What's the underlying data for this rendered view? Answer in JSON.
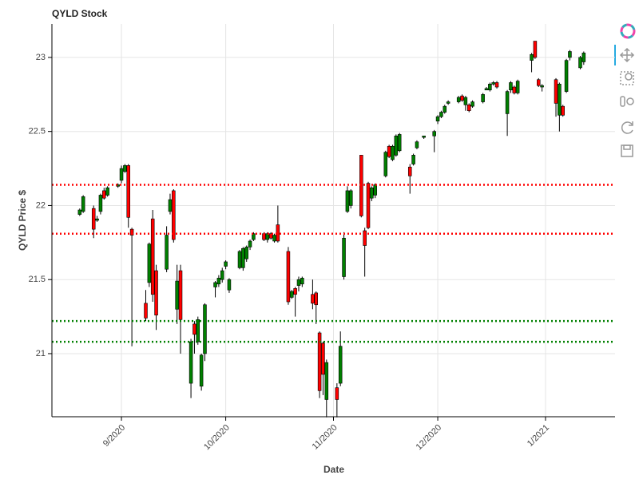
{
  "chart_data": {
    "type": "candlestick",
    "title": "QYLD Stock",
    "x_label": "Date",
    "y_label": "QYLD Price $",
    "xlim": [
      "2020-08-12",
      "2021-01-21"
    ],
    "ylim": [
      20.574,
      23.226
    ],
    "xticks": [
      {
        "value": "2020-09-01",
        "label": "9/2020"
      },
      {
        "value": "2020-10-01",
        "label": "10/2020"
      },
      {
        "value": "2020-11-01",
        "label": "11/2020"
      },
      {
        "value": "2020-12-01",
        "label": "12/2020"
      },
      {
        "value": "2021-01-01",
        "label": "1/2021"
      }
    ],
    "yticks": [
      21,
      21.5,
      22,
      22.5,
      23
    ],
    "grid": true,
    "up_color": "#008000",
    "down_color": "#ff0000",
    "hlines": [
      {
        "value": 22.14,
        "color": "#ff0000"
      },
      {
        "value": 21.81,
        "color": "#ff0000"
      },
      {
        "value": 21.22,
        "color": "#008000"
      },
      {
        "value": 21.08,
        "color": "#008000"
      }
    ],
    "x": [
      "2020-08-20",
      "2020-08-21",
      "2020-08-24",
      "2020-08-25",
      "2020-08-26",
      "2020-08-27",
      "2020-08-28",
      "2020-08-31",
      "2020-09-01",
      "2020-09-02",
      "2020-09-03",
      "2020-09-04",
      "2020-09-08",
      "2020-09-09",
      "2020-09-10",
      "2020-09-11",
      "2020-09-14",
      "2020-09-15",
      "2020-09-16",
      "2020-09-17",
      "2020-09-18",
      "2020-09-21",
      "2020-09-22",
      "2020-09-23",
      "2020-09-24",
      "2020-09-25",
      "2020-09-28",
      "2020-09-29",
      "2020-09-30",
      "2020-10-01",
      "2020-10-02",
      "2020-10-05",
      "2020-10-06",
      "2020-10-07",
      "2020-10-08",
      "2020-10-09",
      "2020-10-12",
      "2020-10-13",
      "2020-10-14",
      "2020-10-15",
      "2020-10-16",
      "2020-10-19",
      "2020-10-20",
      "2020-10-21",
      "2020-10-22",
      "2020-10-23",
      "2020-10-26",
      "2020-10-27",
      "2020-10-28",
      "2020-10-29",
      "2020-10-30",
      "2020-11-02",
      "2020-11-03",
      "2020-11-04",
      "2020-11-05",
      "2020-11-06",
      "2020-11-09",
      "2020-11-10",
      "2020-11-11",
      "2020-11-12",
      "2020-11-13",
      "2020-11-16",
      "2020-11-17",
      "2020-11-18",
      "2020-11-19",
      "2020-11-20",
      "2020-11-23",
      "2020-11-24",
      "2020-11-25",
      "2020-11-27",
      "2020-11-30",
      "2020-12-01",
      "2020-12-02",
      "2020-12-03",
      "2020-12-04",
      "2020-12-07",
      "2020-12-08",
      "2020-12-09",
      "2020-12-10",
      "2020-12-11",
      "2020-12-14",
      "2020-12-15",
      "2020-12-16",
      "2020-12-17",
      "2020-12-18",
      "2020-12-21",
      "2020-12-22",
      "2020-12-23",
      "2020-12-24",
      "2020-12-28",
      "2020-12-29",
      "2020-12-30",
      "2020-12-31",
      "2021-01-04",
      "2021-01-05",
      "2021-01-06",
      "2021-01-07",
      "2021-01-08",
      "2021-01-11",
      "2021-01-12"
    ],
    "open": [
      21.94,
      21.96,
      21.98,
      21.9,
      21.96,
      22.1,
      22.07,
      22.13,
      22.17,
      22.23,
      22.27,
      21.84,
      21.34,
      21.48,
      21.91,
      21.56,
      21.57,
      21.96,
      22.1,
      21.3,
      21.56,
      20.8,
      21.2,
      21.08,
      20.78,
      21.0,
      21.45,
      21.47,
      21.5,
      21.59,
      21.43,
      21.58,
      21.58,
      21.64,
      21.72,
      21.77,
      21.81,
      21.77,
      21.81,
      21.76,
      21.87,
      21.69,
      21.38,
      21.44,
      21.46,
      21.47,
      21.4,
      21.41,
      21.14,
      21.07,
      20.69,
      20.77,
      20.8,
      21.52,
      21.96,
      22.0,
      22.34,
      21.83,
      22.15,
      22.05,
      22.07,
      22.2,
      22.4,
      22.31,
      22.34,
      22.37,
      22.26,
      22.28,
      22.39,
      22.46,
      22.47,
      22.57,
      22.6,
      22.63,
      22.69,
      22.7,
      22.74,
      22.68,
      22.68,
      22.67,
      22.7,
      22.78,
      22.78,
      22.82,
      22.83,
      22.62,
      22.78,
      22.8,
      22.76,
      22.98,
      23.11,
      22.85,
      22.8,
      22.85,
      22.61,
      22.67,
      22.77,
      23.0,
      22.93,
      22.97
    ],
    "high": [
      21.98,
      22.07,
      22.0,
      21.93,
      22.08,
      22.12,
      22.13,
      22.15,
      22.27,
      22.28,
      22.28,
      21.85,
      21.43,
      21.75,
      21.97,
      21.6,
      21.86,
      22.08,
      22.11,
      21.6,
      21.6,
      21.1,
      21.22,
      21.25,
      21.0,
      21.34,
      21.49,
      21.53,
      21.58,
      21.63,
      21.51,
      21.7,
      21.72,
      21.73,
      21.77,
      21.82,
      21.82,
      21.82,
      21.82,
      21.81,
      22.0,
      21.72,
      21.43,
      21.45,
      21.52,
      21.52,
      21.5,
      21.42,
      21.15,
      21.08,
      20.96,
      20.8,
      21.15,
      21.82,
      22.13,
      22.11,
      22.34,
      21.85,
      22.16,
      22.13,
      22.15,
      22.37,
      22.41,
      22.41,
      22.48,
      22.49,
      22.28,
      22.35,
      22.44,
      22.47,
      22.51,
      22.61,
      22.64,
      22.68,
      22.71,
      22.74,
      22.75,
      22.74,
      22.69,
      22.71,
      22.76,
      22.8,
      22.83,
      22.84,
      22.84,
      22.78,
      22.84,
      22.81,
      22.85,
      23.03,
      23.11,
      22.86,
      22.82,
      22.86,
      22.83,
      22.68,
      22.99,
      23.05,
      23.01,
      23.04
    ],
    "low": [
      21.93,
      21.95,
      21.78,
      21.89,
      21.94,
      22.04,
      22.06,
      22.12,
      22.15,
      22.22,
      21.85,
      21.05,
      21.22,
      21.45,
      21.35,
      21.16,
      21.55,
      21.94,
      21.75,
      21.2,
      21.0,
      20.7,
      21.0,
      21.06,
      20.75,
      20.95,
      21.38,
      21.45,
      21.48,
      21.57,
      21.41,
      21.57,
      21.56,
      21.62,
      21.7,
      21.76,
      21.76,
      21.75,
      21.77,
      21.75,
      21.75,
      21.33,
      21.37,
      21.25,
      21.42,
      21.45,
      21.3,
      21.2,
      20.7,
      20.72,
      20.57,
      20.57,
      20.78,
      21.5,
      21.95,
      21.98,
      21.92,
      21.52,
      21.84,
      22.03,
      22.05,
      22.19,
      22.32,
      22.3,
      22.33,
      22.36,
      22.08,
      22.27,
      22.38,
      22.45,
      22.36,
      22.55,
      22.59,
      22.62,
      22.68,
      22.69,
      22.7,
      22.64,
      22.63,
      22.66,
      22.69,
      22.78,
      22.77,
      22.81,
      22.79,
      22.47,
      22.76,
      22.75,
      22.75,
      22.9,
      22.99,
      22.8,
      22.77,
      22.6,
      22.5,
      22.6,
      22.76,
      22.98,
      22.92,
      22.95
    ],
    "close": [
      21.97,
      22.06,
      21.84,
      21.91,
      22.07,
      22.05,
      22.12,
      22.14,
      22.25,
      22.27,
      21.92,
      21.8,
      21.24,
      21.74,
      21.4,
      21.26,
      21.8,
      22.04,
      21.77,
      21.49,
      21.23,
      21.08,
      21.13,
      21.23,
      20.99,
      21.33,
      21.48,
      21.51,
      21.56,
      21.62,
      21.5,
      21.69,
      21.71,
      21.72,
      21.76,
      21.81,
      21.77,
      21.81,
      21.78,
      21.8,
      21.76,
      21.35,
      21.42,
      21.4,
      21.5,
      21.51,
      21.34,
      21.33,
      20.75,
      20.86,
      20.94,
      20.69,
      21.05,
      21.78,
      22.1,
      22.1,
      21.93,
      21.73,
      21.85,
      22.12,
      22.14,
      22.36,
      22.33,
      22.4,
      22.47,
      22.48,
      22.2,
      22.34,
      22.43,
      22.47,
      22.5,
      22.6,
      22.63,
      22.67,
      22.7,
      22.73,
      22.71,
      22.73,
      22.64,
      22.7,
      22.75,
      22.79,
      22.82,
      22.83,
      22.8,
      22.77,
      22.83,
      22.76,
      22.84,
      23.02,
      23.0,
      22.81,
      22.81,
      22.69,
      22.82,
      22.61,
      22.98,
      23.04,
      23.0,
      23.03
    ]
  }
}
